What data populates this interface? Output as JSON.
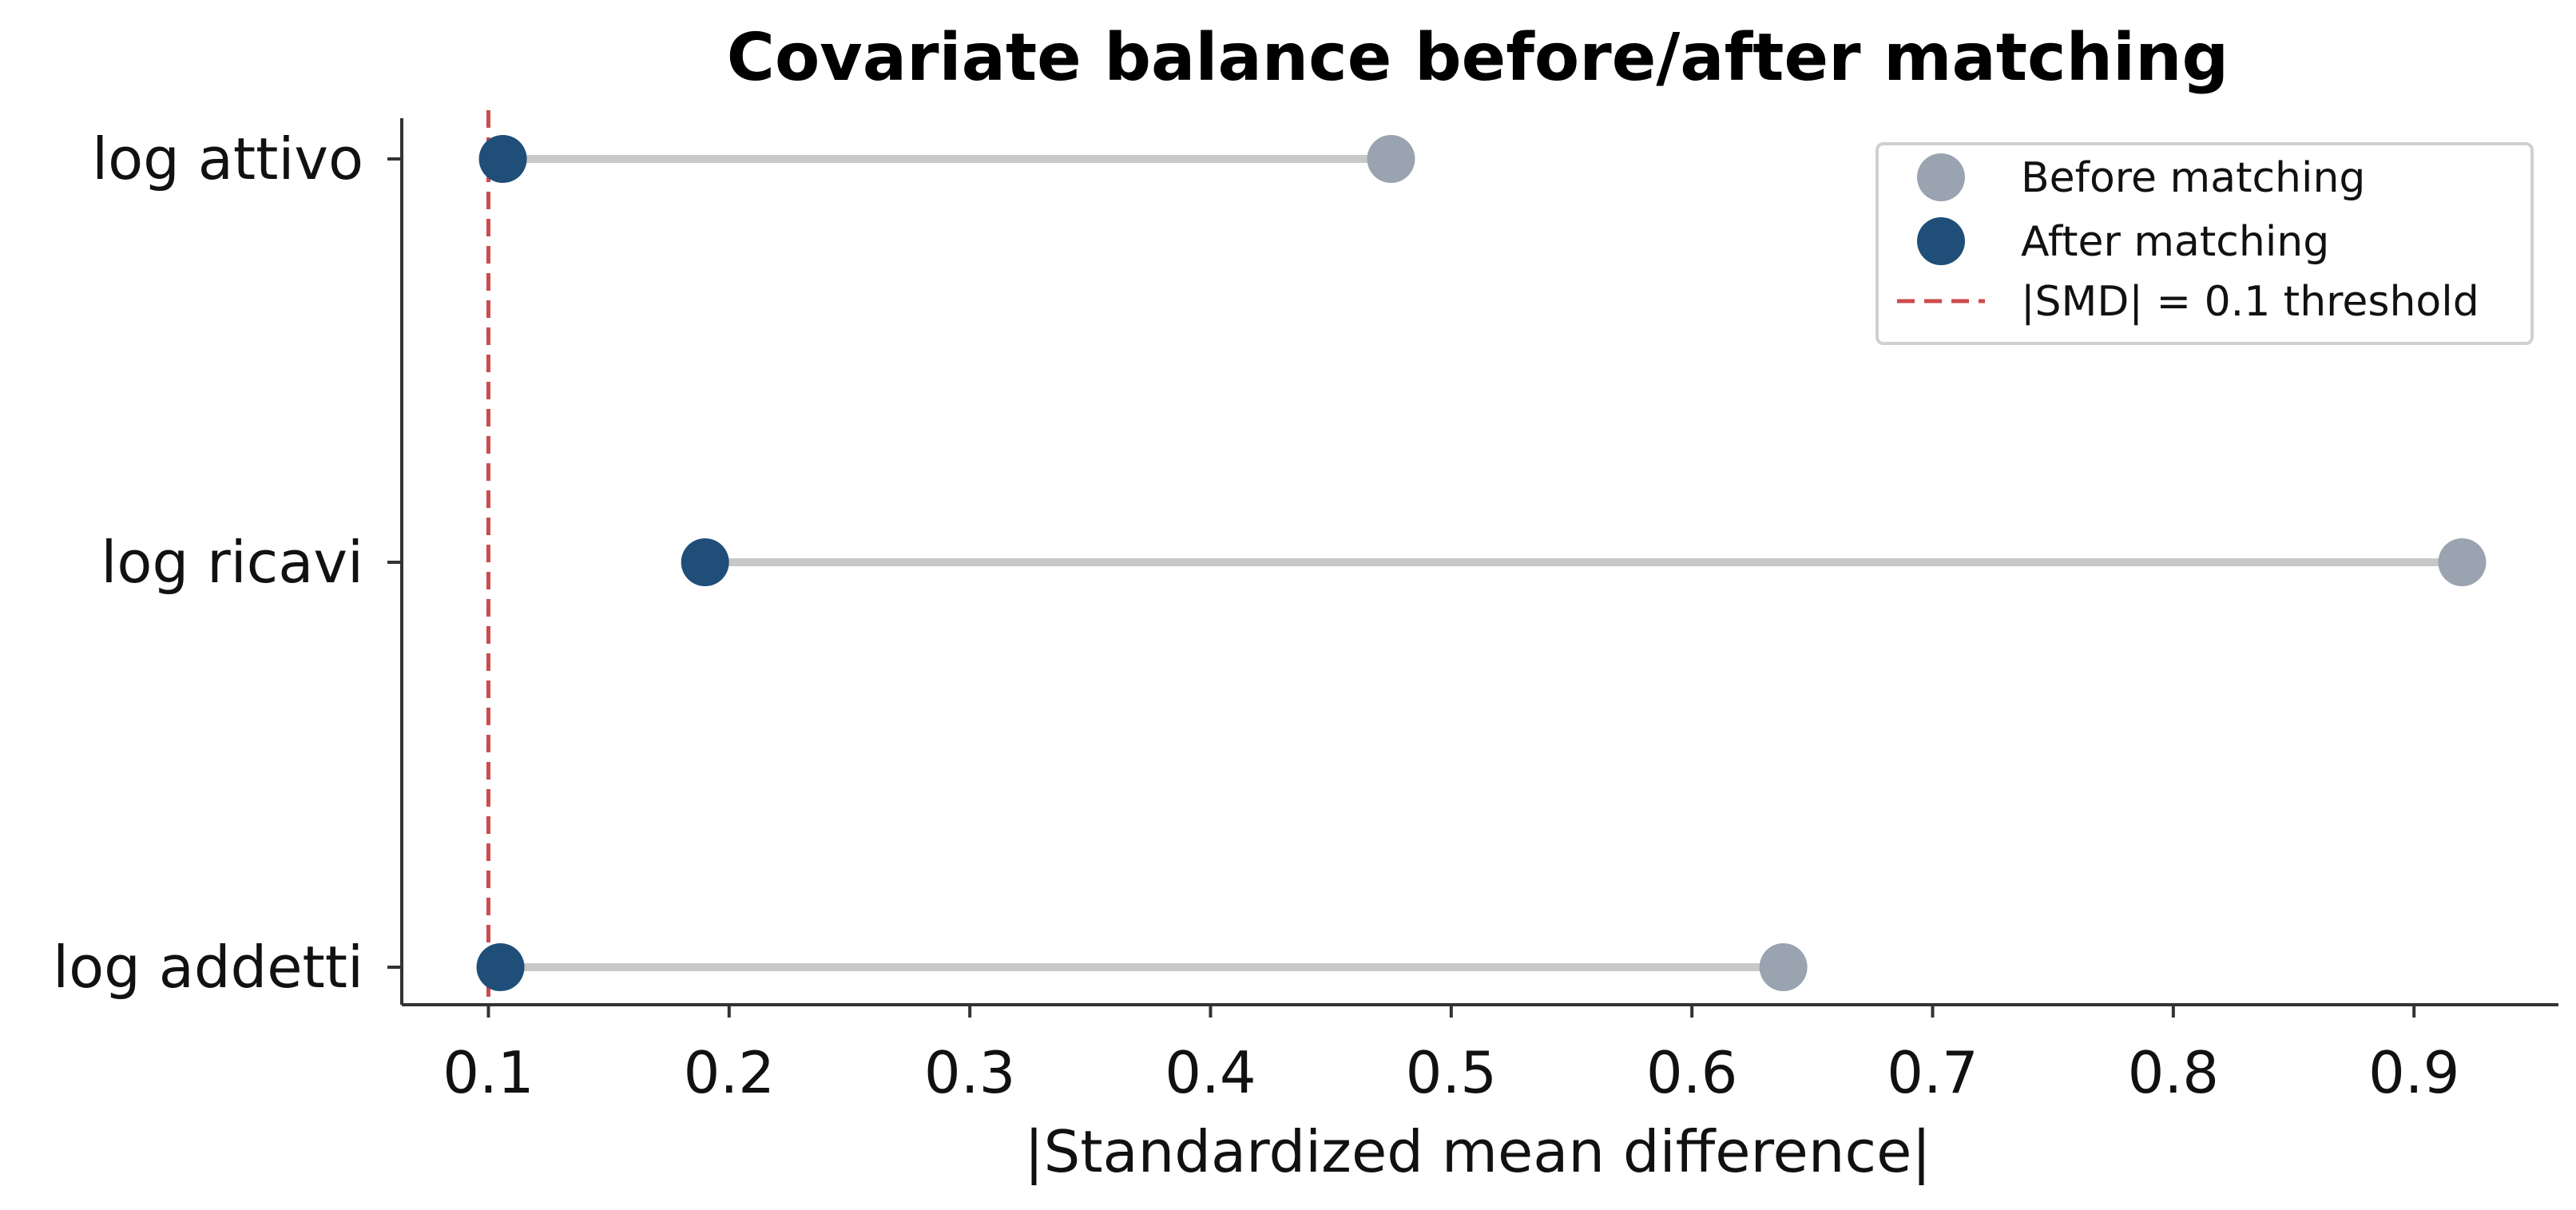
{
  "chart_data": {
    "type": "scatter",
    "subtype": "dumbbell",
    "title": "Covariate balance before/after matching",
    "xlabel": "|Standardized mean difference|",
    "ylabel": "",
    "xlim": [
      0.064,
      0.96
    ],
    "xticks": [
      0.1,
      0.2,
      0.3,
      0.4,
      0.5,
      0.6,
      0.7,
      0.8,
      0.9
    ],
    "xtick_labels": [
      "0.1",
      "0.2",
      "0.3",
      "0.4",
      "0.5",
      "0.6",
      "0.7",
      "0.8",
      "0.9"
    ],
    "categories": [
      "log attivo",
      "log ricavi",
      "log addetti"
    ],
    "series": [
      {
        "name": "Before matching",
        "values": [
          0.475,
          0.92,
          0.638
        ],
        "color": "#9aa3b0"
      },
      {
        "name": "After matching",
        "values": [
          0.106,
          0.19,
          0.105
        ],
        "color": "#1f4e79"
      }
    ],
    "connector_color": "#c8c8c8",
    "threshold": {
      "name": "|SMD| = 0.1 threshold",
      "value": 0.1,
      "color": "#cc4c4c",
      "style": "dashed"
    },
    "legend": {
      "position": "top-right",
      "entries": [
        "Before matching",
        "After matching",
        "|SMD| = 0.1 threshold"
      ]
    },
    "grid": false
  }
}
